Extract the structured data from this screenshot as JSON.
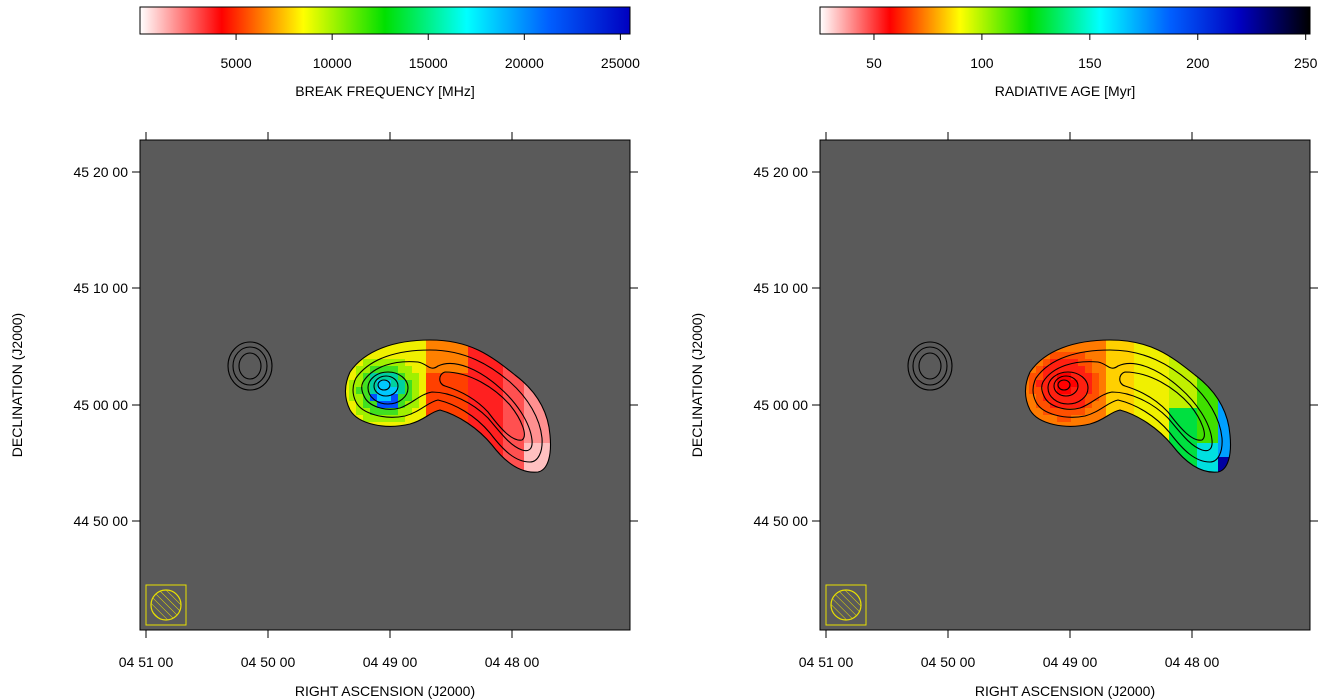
{
  "colors": {
    "map_background": "#5a5a5a",
    "contour": "#000000",
    "beam": "#e8e000"
  },
  "chart_data": [
    {
      "type": "heatmap",
      "name": "break-frequency-map",
      "colorbar": {
        "label": "BREAK FREQUENCY [MHz]",
        "range": [
          0,
          25500
        ],
        "ticks": [
          5000,
          10000,
          15000,
          20000,
          25000
        ],
        "tick_labels": [
          "5000",
          "10000",
          "15000",
          "20000",
          "25000"
        ],
        "colormap": [
          "#ffffff",
          "#ff0000",
          "#ffff00",
          "#00e000",
          "#00ffff",
          "#0060ff",
          "#0000c0"
        ]
      },
      "xlabel": "RIGHT ASCENSION  (J2000)",
      "ylabel": "DECLINATION  (J2000)",
      "x_ticks": [
        "04 51 00",
        "04 50 00",
        "04 49 00",
        "04 48 00"
      ],
      "y_ticks": [
        "45 20 00",
        "45 10 00",
        "45 00 00",
        "44 50 00"
      ]
    },
    {
      "type": "heatmap",
      "name": "radiative-age-map",
      "colorbar": {
        "label": "RADIATIVE AGE [Myr]",
        "range": [
          25,
          252
        ],
        "ticks": [
          50,
          100,
          150,
          200,
          250
        ],
        "tick_labels": [
          "50",
          "100",
          "150",
          "200",
          "250"
        ],
        "colormap": [
          "#ffffff",
          "#ff0000",
          "#ffff00",
          "#00e000",
          "#00ffff",
          "#0060ff",
          "#0000c0",
          "#000000"
        ]
      },
      "xlabel": "RIGHT ASCENSION  (J2000)",
      "ylabel": "DECLINATION  (J2000)",
      "x_ticks": [
        "04 51 00",
        "04 50 00",
        "04 49 00",
        "04 48 00"
      ],
      "y_ticks": [
        "45 20 00",
        "45 10 00",
        "45 00 00",
        "44 50 00"
      ]
    }
  ]
}
